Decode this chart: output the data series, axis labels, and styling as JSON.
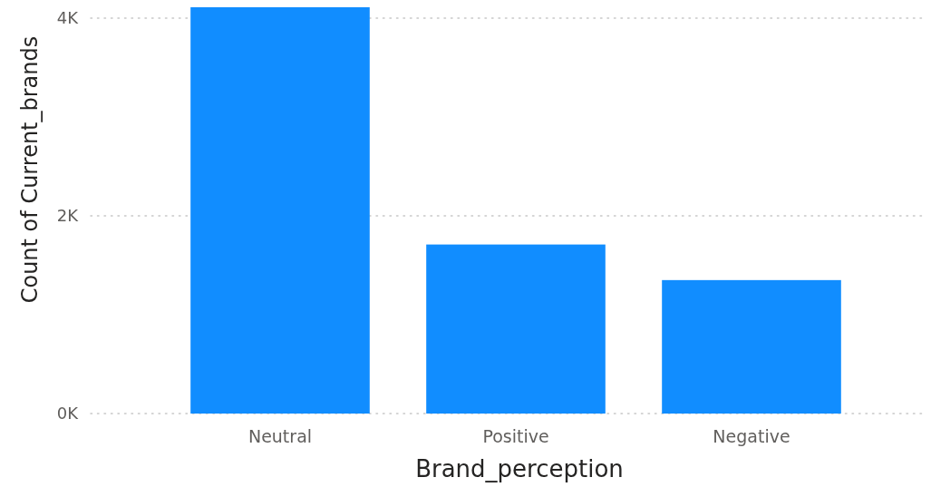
{
  "chart_data": {
    "type": "bar",
    "xlabel": "Brand_perception",
    "ylabel": "Count of Current_brands",
    "categories": [
      "Neutral",
      "Positive",
      "Negative"
    ],
    "values": [
      4110,
      1710,
      1350
    ],
    "color": "#118dff",
    "ylim": [
      0,
      4110
    ],
    "yticks": [
      {
        "value": 0,
        "label": "0K"
      },
      {
        "value": 2000,
        "label": "2K"
      },
      {
        "value": 4000,
        "label": "4K"
      }
    ],
    "grid": "y"
  }
}
